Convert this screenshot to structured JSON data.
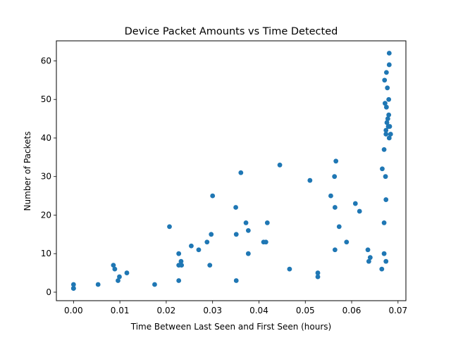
{
  "chart_data": {
    "type": "scatter",
    "title": "Device Packet Amounts vs Time Detected",
    "xlabel": "Time Between Last Seen and First Seen (hours)",
    "ylabel": "Number of Packets",
    "xlim": [
      -0.0037,
      0.0717
    ],
    "ylim": [
      -2.2,
      65.2
    ],
    "xticks": [
      0.0,
      0.01,
      0.02,
      0.03,
      0.04,
      0.05,
      0.06,
      0.07
    ],
    "xtick_labels": [
      "0.00",
      "0.01",
      "0.02",
      "0.03",
      "0.04",
      "0.05",
      "0.06",
      "0.07"
    ],
    "yticks": [
      0,
      10,
      20,
      30,
      40,
      50,
      60
    ],
    "ytick_labels": [
      "0",
      "10",
      "20",
      "30",
      "40",
      "50",
      "60"
    ],
    "grid": false,
    "color": "#1f77b4",
    "points": [
      [
        0.0,
        1
      ],
      [
        0.0,
        1
      ],
      [
        0.0,
        1
      ],
      [
        0.0,
        2
      ],
      [
        0.0053,
        2
      ],
      [
        0.0086,
        7
      ],
      [
        0.0089,
        6
      ],
      [
        0.0096,
        3
      ],
      [
        0.0099,
        4
      ],
      [
        0.0115,
        5
      ],
      [
        0.0175,
        2
      ],
      [
        0.0207,
        17
      ],
      [
        0.0227,
        10
      ],
      [
        0.0227,
        7
      ],
      [
        0.0227,
        3
      ],
      [
        0.0232,
        8
      ],
      [
        0.0233,
        7
      ],
      [
        0.0254,
        12
      ],
      [
        0.027,
        11
      ],
      [
        0.0288,
        13
      ],
      [
        0.0294,
        7
      ],
      [
        0.0297,
        15
      ],
      [
        0.03,
        25
      ],
      [
        0.035,
        22
      ],
      [
        0.0351,
        15
      ],
      [
        0.0351,
        3
      ],
      [
        0.0361,
        31
      ],
      [
        0.0372,
        18
      ],
      [
        0.0377,
        16
      ],
      [
        0.0377,
        10
      ],
      [
        0.041,
        13
      ],
      [
        0.0415,
        13
      ],
      [
        0.0418,
        18
      ],
      [
        0.0445,
        33
      ],
      [
        0.0466,
        6
      ],
      [
        0.051,
        29
      ],
      [
        0.0527,
        5
      ],
      [
        0.0527,
        4
      ],
      [
        0.0555,
        25
      ],
      [
        0.0563,
        30
      ],
      [
        0.0564,
        22
      ],
      [
        0.0564,
        11
      ],
      [
        0.0566,
        34
      ],
      [
        0.0573,
        17
      ],
      [
        0.0589,
        13
      ],
      [
        0.0608,
        23
      ],
      [
        0.0617,
        21
      ],
      [
        0.0635,
        11
      ],
      [
        0.0637,
        8
      ],
      [
        0.064,
        9
      ],
      [
        0.0665,
        6
      ],
      [
        0.0666,
        32
      ],
      [
        0.067,
        37
      ],
      [
        0.067,
        18
      ],
      [
        0.067,
        10
      ],
      [
        0.0671,
        55
      ],
      [
        0.0672,
        49
      ],
      [
        0.0673,
        30
      ],
      [
        0.0674,
        42
      ],
      [
        0.0674,
        41
      ],
      [
        0.0674,
        24
      ],
      [
        0.0674,
        8
      ],
      [
        0.0675,
        57
      ],
      [
        0.0675,
        48
      ],
      [
        0.0676,
        44
      ],
      [
        0.0677,
        53
      ],
      [
        0.0678,
        45
      ],
      [
        0.0679,
        43
      ],
      [
        0.068,
        50
      ],
      [
        0.068,
        46
      ],
      [
        0.0681,
        62
      ],
      [
        0.0681,
        59
      ],
      [
        0.0681,
        40
      ],
      [
        0.0682,
        43
      ],
      [
        0.0684,
        41
      ]
    ]
  }
}
